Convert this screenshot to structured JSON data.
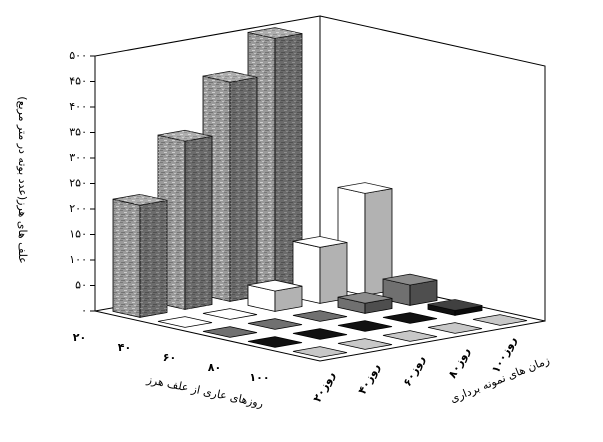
{
  "chart_data": {
    "type": "bar3d",
    "y_label": "علف های هرز(عدد بوته در متر مربع)",
    "x_label": "روزهای عاری از علف هرز",
    "z_label": "زمان های نمونه برداری",
    "categories": [
      "۲۰",
      "۴۰",
      "۶۰",
      "۸۰",
      "۱۰۰"
    ],
    "z_categories": [
      "۲۰روز",
      "۴۰روز",
      "۶۰روز",
      "۸۰روز",
      "۱۰۰روز"
    ],
    "series": [
      {
        "color": "#9a9a9a",
        "pattern": "textured",
        "values": [
          220,
          330,
          430,
          500,
          0
        ]
      },
      {
        "color": "#ffffff",
        "values": [
          0,
          0,
          40,
          110,
          200
        ]
      },
      {
        "color": "#707070",
        "values": [
          0,
          0,
          0,
          20,
          40
        ]
      },
      {
        "color": "#111111",
        "values": [
          0,
          0,
          0,
          0,
          10
        ]
      },
      {
        "color": "#c8c8c8",
        "values": [
          0,
          0,
          0,
          0,
          0
        ]
      }
    ],
    "ylim": [
      0,
      500
    ],
    "yticks": [
      {
        "value": 0,
        "label": "۰"
      },
      {
        "value": 50,
        "label": "۵۰"
      },
      {
        "value": 100,
        "label": "۱۰۰"
      },
      {
        "value": 150,
        "label": "۱۵۰"
      },
      {
        "value": 200,
        "label": "۲۰۰"
      },
      {
        "value": 250,
        "label": "۲۵۰"
      },
      {
        "value": 300,
        "label": "۳۰۰"
      },
      {
        "value": 350,
        "label": "۳۵۰"
      },
      {
        "value": 400,
        "label": "۴۰۰"
      },
      {
        "value": 450,
        "label": "۴۵۰"
      },
      {
        "value": 500,
        "label": "۵۰۰"
      }
    ],
    "grid": false
  }
}
